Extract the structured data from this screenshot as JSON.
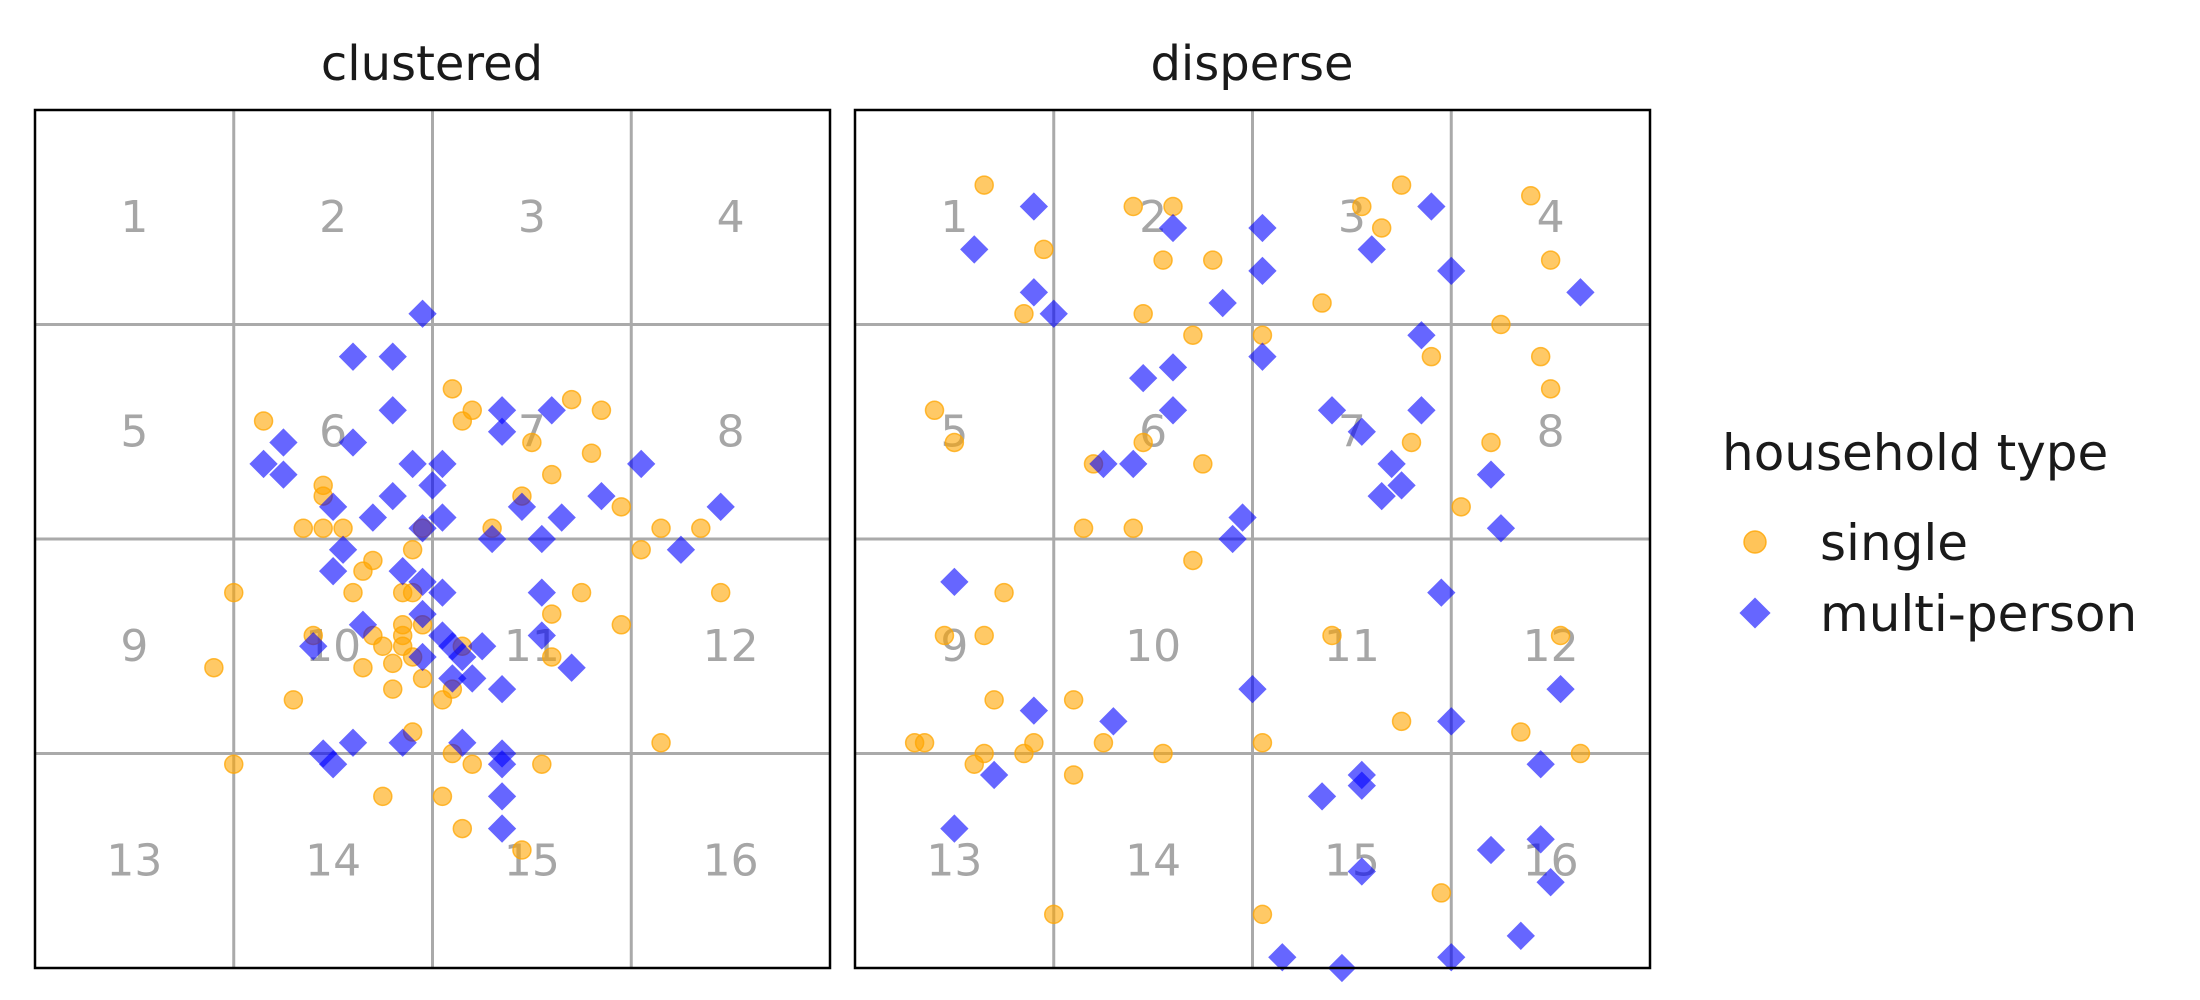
{
  "chart_data": [
    {
      "type": "scatter",
      "title": "clustered",
      "xlim": [
        0,
        4
      ],
      "ylim": [
        0,
        4
      ],
      "grid": true,
      "cell_labels": [
        "1",
        "2",
        "3",
        "4",
        "5",
        "6",
        "7",
        "8",
        "9",
        "10",
        "11",
        "12",
        "13",
        "14",
        "15",
        "16"
      ],
      "series": [
        {
          "name": "single",
          "points": [
            [
              1.15,
              2.55
            ],
            [
              1.45,
              2.25
            ],
            [
              1.35,
              2.05
            ],
            [
              1.55,
              2.05
            ],
            [
              1.95,
              2.05
            ],
            [
              1.65,
              1.85
            ],
            [
              1.85,
              1.75
            ],
            [
              1.0,
              1.75
            ],
            [
              0.9,
              1.4
            ],
            [
              1.3,
              1.25
            ],
            [
              1.65,
              1.4
            ],
            [
              1.75,
              1.5
            ],
            [
              1.9,
              1.75
            ],
            [
              1.85,
              1.55
            ],
            [
              1.95,
              1.6
            ],
            [
              1.8,
              1.3
            ],
            [
              2.1,
              1.3
            ],
            [
              2.05,
              1.25
            ],
            [
              1.85,
              1.5
            ],
            [
              1.9,
              1.45
            ],
            [
              2.1,
              2.7
            ],
            [
              2.15,
              2.55
            ],
            [
              2.3,
              2.05
            ],
            [
              2.45,
              2.2
            ],
            [
              2.6,
              2.3
            ],
            [
              2.5,
              2.45
            ],
            [
              2.7,
              2.65
            ],
            [
              2.85,
              2.6
            ],
            [
              2.8,
              2.4
            ],
            [
              2.95,
              2.15
            ],
            [
              3.15,
              2.05
            ],
            [
              3.35,
              2.05
            ],
            [
              3.45,
              1.75
            ],
            [
              3.05,
              1.95
            ],
            [
              2.95,
              1.6
            ],
            [
              2.6,
              1.65
            ],
            [
              2.6,
              1.45
            ],
            [
              2.75,
              1.75
            ],
            [
              2.15,
              1.5
            ],
            [
              1.95,
              1.35
            ],
            [
              1.9,
              1.1
            ],
            [
              2.1,
              1.0
            ],
            [
              2.2,
              0.95
            ],
            [
              2.05,
              0.8
            ],
            [
              2.15,
              0.65
            ],
            [
              2.55,
              0.95
            ],
            [
              1.0,
              0.95
            ],
            [
              2.45,
              0.55
            ],
            [
              1.85,
              1.6
            ],
            [
              3.15,
              1.05
            ],
            [
              1.45,
              2.05
            ],
            [
              1.7,
              1.9
            ],
            [
              1.9,
              1.95
            ],
            [
              1.4,
              1.55
            ],
            [
              1.7,
              1.55
            ],
            [
              1.45,
              2.2
            ],
            [
              1.8,
              1.42
            ],
            [
              1.75,
              0.8
            ],
            [
              1.6,
              1.75
            ],
            [
              2.2,
              2.6
            ]
          ]
        },
        {
          "name": "multi-person",
          "points": [
            [
              1.95,
              3.05
            ],
            [
              1.6,
              2.85
            ],
            [
              1.8,
              2.85
            ],
            [
              1.8,
              2.6
            ],
            [
              1.6,
              2.45
            ],
            [
              1.25,
              2.45
            ],
            [
              1.15,
              2.35
            ],
            [
              1.25,
              2.3
            ],
            [
              1.5,
              2.15
            ],
            [
              1.55,
              1.95
            ],
            [
              1.5,
              1.85
            ],
            [
              1.7,
              2.1
            ],
            [
              1.8,
              2.2
            ],
            [
              1.9,
              2.35
            ],
            [
              2.05,
              2.35
            ],
            [
              2.0,
              2.25
            ],
            [
              2.05,
              2.1
            ],
            [
              1.95,
              2.05
            ],
            [
              1.85,
              1.85
            ],
            [
              1.95,
              1.8
            ],
            [
              2.05,
              1.75
            ],
            [
              1.95,
              1.65
            ],
            [
              2.05,
              1.55
            ],
            [
              2.1,
              1.5
            ],
            [
              2.15,
              1.45
            ],
            [
              2.25,
              1.5
            ],
            [
              2.1,
              1.35
            ],
            [
              2.2,
              1.35
            ],
            [
              2.35,
              2.5
            ],
            [
              2.6,
              2.6
            ],
            [
              2.35,
              2.6
            ],
            [
              2.45,
              2.15
            ],
            [
              2.3,
              2.0
            ],
            [
              2.55,
              2.0
            ],
            [
              2.65,
              2.1
            ],
            [
              2.55,
              1.75
            ],
            [
              2.85,
              2.2
            ],
            [
              3.05,
              2.35
            ],
            [
              3.45,
              2.15
            ],
            [
              3.25,
              1.95
            ],
            [
              2.55,
              1.55
            ],
            [
              2.7,
              1.4
            ],
            [
              2.35,
              1.3
            ],
            [
              1.4,
              1.5
            ],
            [
              1.65,
              1.6
            ],
            [
              1.6,
              1.05
            ],
            [
              1.85,
              1.05
            ],
            [
              1.45,
              1.0
            ],
            [
              1.5,
              0.95
            ],
            [
              2.15,
              1.05
            ],
            [
              2.35,
              1.0
            ],
            [
              2.35,
              0.95
            ],
            [
              2.35,
              0.8
            ],
            [
              2.35,
              0.65
            ],
            [
              1.95,
              1.45
            ]
          ]
        }
      ]
    },
    {
      "type": "scatter",
      "title": "disperse",
      "xlim": [
        0,
        4
      ],
      "ylim": [
        0,
        4
      ],
      "grid": true,
      "cell_labels": [
        "1",
        "2",
        "3",
        "4",
        "5",
        "6",
        "7",
        "8",
        "9",
        "10",
        "11",
        "12",
        "13",
        "14",
        "15",
        "16"
      ],
      "series": [
        {
          "name": "single",
          "points": [
            [
              0.65,
              3.65
            ],
            [
              0.95,
              3.35
            ],
            [
              0.85,
              3.05
            ],
            [
              1.4,
              3.55
            ],
            [
              1.6,
              3.55
            ],
            [
              1.55,
              3.3
            ],
            [
              1.8,
              3.3
            ],
            [
              1.45,
              3.05
            ],
            [
              1.7,
              2.95
            ],
            [
              2.05,
              2.95
            ],
            [
              2.35,
              3.1
            ],
            [
              2.55,
              3.55
            ],
            [
              2.65,
              3.45
            ],
            [
              2.75,
              3.65
            ],
            [
              3.4,
              3.6
            ],
            [
              3.5,
              3.3
            ],
            [
              3.25,
              3.0
            ],
            [
              3.45,
              2.85
            ],
            [
              3.5,
              2.7
            ],
            [
              2.9,
              2.85
            ],
            [
              2.8,
              2.45
            ],
            [
              3.05,
              2.15
            ],
            [
              3.2,
              2.45
            ],
            [
              0.4,
              2.6
            ],
            [
              0.5,
              2.45
            ],
            [
              1.2,
              2.35
            ],
            [
              1.45,
              2.45
            ],
            [
              1.75,
              2.35
            ],
            [
              1.15,
              2.05
            ],
            [
              1.4,
              2.05
            ],
            [
              1.7,
              1.9
            ],
            [
              0.75,
              1.75
            ],
            [
              0.65,
              1.55
            ],
            [
              0.45,
              1.55
            ],
            [
              0.7,
              1.25
            ],
            [
              1.1,
              1.25
            ],
            [
              0.9,
              1.05
            ],
            [
              1.55,
              1.0
            ],
            [
              0.35,
              1.05
            ],
            [
              0.65,
              1.0
            ],
            [
              0.85,
              1.0
            ],
            [
              2.4,
              1.55
            ],
            [
              2.75,
              1.15
            ],
            [
              3.55,
              1.55
            ],
            [
              2.05,
              1.05
            ],
            [
              3.35,
              1.1
            ],
            [
              3.65,
              1.0
            ],
            [
              0.6,
              0.95
            ],
            [
              1.1,
              0.9
            ],
            [
              2.05,
              0.25
            ],
            [
              2.95,
              0.35
            ],
            [
              1.0,
              0.25
            ],
            [
              0.3,
              1.05
            ],
            [
              1.25,
              1.05
            ]
          ]
        },
        {
          "name": "multi-person",
          "points": [
            [
              0.9,
              3.55
            ],
            [
              0.6,
              3.35
            ],
            [
              0.9,
              3.15
            ],
            [
              1.0,
              3.05
            ],
            [
              1.6,
              3.45
            ],
            [
              2.05,
              3.45
            ],
            [
              2.05,
              3.25
            ],
            [
              1.85,
              3.1
            ],
            [
              2.6,
              3.35
            ],
            [
              2.9,
              3.55
            ],
            [
              3.0,
              3.25
            ],
            [
              2.85,
              2.95
            ],
            [
              3.65,
              3.15
            ],
            [
              1.45,
              2.75
            ],
            [
              1.6,
              2.8
            ],
            [
              1.6,
              2.6
            ],
            [
              2.05,
              2.85
            ],
            [
              2.4,
              2.6
            ],
            [
              2.55,
              2.5
            ],
            [
              2.7,
              2.35
            ],
            [
              2.75,
              2.25
            ],
            [
              2.65,
              2.2
            ],
            [
              2.85,
              2.6
            ],
            [
              3.2,
              2.3
            ],
            [
              3.25,
              2.05
            ],
            [
              2.95,
              1.75
            ],
            [
              1.25,
              2.35
            ],
            [
              1.95,
              2.1
            ],
            [
              1.9,
              2.0
            ],
            [
              0.5,
              1.8
            ],
            [
              2.0,
              1.3
            ],
            [
              0.9,
              1.2
            ],
            [
              1.3,
              1.15
            ],
            [
              0.7,
              0.9
            ],
            [
              0.5,
              0.65
            ],
            [
              2.35,
              0.8
            ],
            [
              2.55,
              0.85
            ],
            [
              2.55,
              0.9
            ],
            [
              3.0,
              1.15
            ],
            [
              3.55,
              1.3
            ],
            [
              3.45,
              0.95
            ],
            [
              3.45,
              0.6
            ],
            [
              3.2,
              0.55
            ],
            [
              2.15,
              0.05
            ],
            [
              2.45,
              0.0
            ],
            [
              3.0,
              0.05
            ],
            [
              3.5,
              0.4
            ],
            [
              2.55,
              0.45
            ],
            [
              3.35,
              0.15
            ],
            [
              1.4,
              2.35
            ]
          ]
        }
      ]
    }
  ],
  "legend": {
    "title": "household type",
    "placement": "right",
    "items": [
      {
        "label": "single",
        "shape": "circle",
        "color": "#FFA500"
      },
      {
        "label": "multi-person",
        "shape": "diamond",
        "color": "#0000FF"
      }
    ]
  },
  "colors": {
    "single": "#FFA500",
    "multi-person": "#0000FF",
    "grid": "#AAAAAA",
    "cell_label": "#A6A6A6"
  }
}
